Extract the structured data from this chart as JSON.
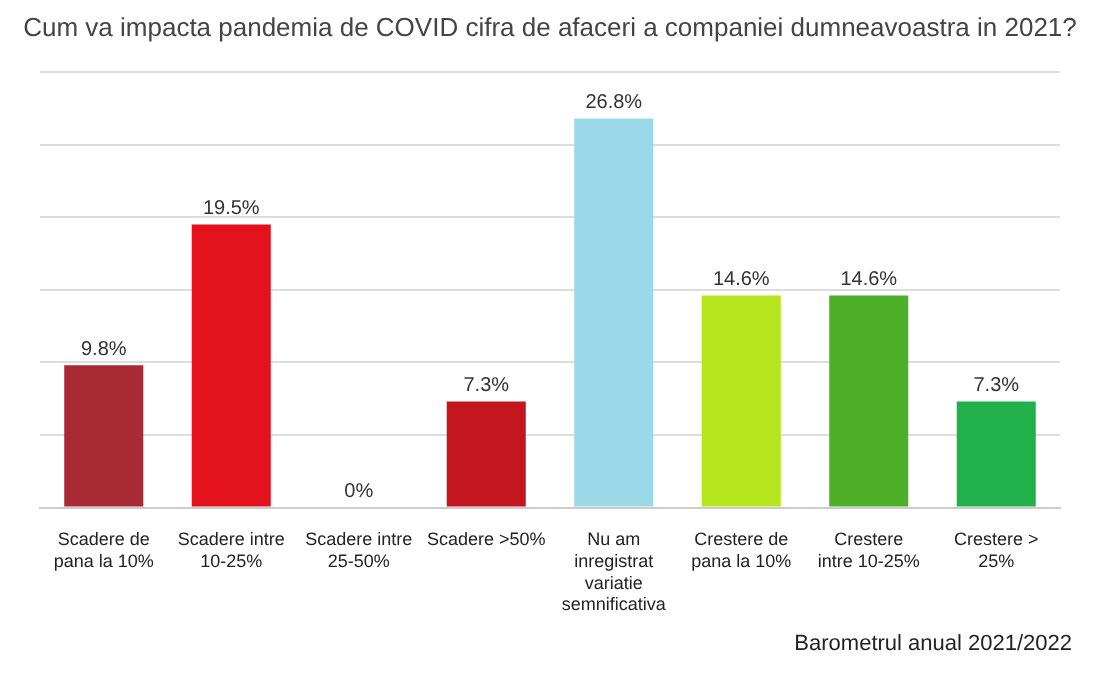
{
  "chart_data": {
    "type": "bar",
    "title": "Cum va impacta pandemia de COVID cifra de afaceri a companiei dumneavoastra in 2021?",
    "categories": [
      "Scadere de pana la 10%",
      "Scadere intre 10-25%",
      "Scadere intre 25-50%",
      "Scadere >50%",
      "Nu am inregistrat variatie semnificativa",
      "Crestere de pana la 10%",
      "Crestere intre 10-25%",
      "Crestere > 25%"
    ],
    "values": [
      9.8,
      19.5,
      0,
      7.3,
      26.8,
      14.6,
      14.6,
      7.3
    ],
    "colors": [
      "#a82a35",
      "#e3121d",
      "#c4161f",
      "#c4161f",
      "#9cd9e8",
      "#b5e61d",
      "#4caf27",
      "#22b04b"
    ],
    "value_labels": [
      "9.8%",
      "19.5%",
      "0%",
      "7.3%",
      "26.8%",
      "14.6%",
      "14.6%",
      "7.3%"
    ],
    "grid": "y",
    "tick_labels": "x",
    "legend": false,
    "annotations": [
      "Barometrul anual 2021/2022"
    ]
  }
}
